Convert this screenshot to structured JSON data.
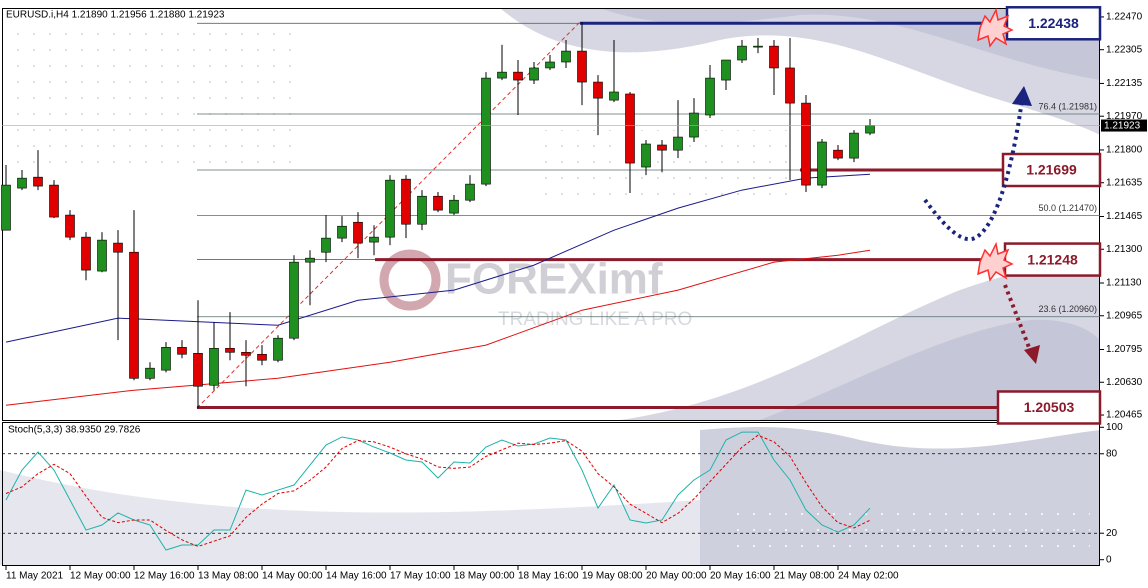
{
  "chart_data": [
    {
      "type": "candlestick",
      "title": "EURUSD.i,H4  1.21890 1.21956 1.21880 1.21923",
      "categories": [
        "11 May 2021",
        null,
        null,
        null,
        "12 May 00:00",
        null,
        null,
        null,
        "12 May 16:00",
        null,
        null,
        null,
        "13 May 08:00",
        null,
        null,
        null,
        "14 May 00:00",
        null,
        null,
        null,
        "14 May 16:00",
        null,
        null,
        null,
        "17 May 10:00",
        null,
        null,
        null,
        "18 May 00:00",
        null,
        null,
        null,
        "18 May 16:00",
        null,
        null,
        null,
        "19 May 08:00",
        null,
        null,
        null,
        "20 May 00:00",
        null,
        null,
        null,
        "20 May 16:00",
        null,
        null,
        null,
        "21 May 08:00",
        null,
        null,
        null,
        "24 May 02:00",
        null,
        null
      ],
      "open": [
        1.21396,
        1.21608,
        1.21663,
        1.21623,
        1.21472,
        1.21361,
        1.2119,
        1.21331,
        1.21285,
        1.2065,
        1.20691,
        1.20806,
        1.20776,
        1.20615,
        1.20801,
        1.20781,
        1.20771,
        1.20741,
        1.20852,
        1.21235,
        1.21285,
        1.21356,
        1.21436,
        1.21336,
        1.21361,
        1.21653,
        1.21426,
        1.21567,
        1.21482,
        1.21547,
        1.21628,
        1.22162,
        1.22192,
        1.22152,
        1.22213,
        1.22243,
        1.22298,
        1.22142,
        1.22051,
        1.22082,
        1.21714,
        1.21825,
        1.21799,
        1.21865,
        1.21976,
        1.22152,
        1.22253,
        1.22318,
        1.22323,
        1.22213,
        1.22036,
        1.21623,
        1.21799,
        1.21759,
        1.21885
      ],
      "high": [
        1.21724,
        1.21699,
        1.21799,
        1.21648,
        1.21497,
        1.21386,
        1.21386,
        1.21396,
        1.21497,
        1.20731,
        1.20832,
        1.20842,
        1.21043,
        1.20932,
        1.20983,
        1.20842,
        1.20817,
        1.20867,
        1.2127,
        1.21295,
        1.21472,
        1.21467,
        1.21487,
        1.21421,
        1.21673,
        1.21673,
        1.21598,
        1.21588,
        1.21573,
        1.21673,
        1.22192,
        1.22329,
        1.22253,
        1.22243,
        1.22278,
        1.22354,
        1.22444,
        1.22177,
        1.22354,
        1.22092,
        1.2185,
        1.2185,
        1.22051,
        1.22061,
        1.22228,
        1.22253,
        1.22354,
        1.22364,
        1.22354,
        1.22364,
        1.22077,
        1.21855,
        1.21825,
        1.219,
        1.21956
      ],
      "low": [
        1.21396,
        1.21598,
        1.21598,
        1.21457,
        1.21346,
        1.21144,
        1.21184,
        1.20842,
        1.2064,
        1.2064,
        1.2068,
        1.20751,
        1.20499,
        1.2059,
        1.20741,
        1.2061,
        1.20716,
        1.20731,
        1.20842,
        1.21018,
        1.21235,
        1.21336,
        1.21255,
        1.2127,
        1.21321,
        1.21356,
        1.21396,
        1.21487,
        1.21472,
        1.21537,
        1.21618,
        1.22152,
        1.21976,
        1.22132,
        1.22202,
        1.22213,
        1.22026,
        1.21875,
        1.22041,
        1.21583,
        1.21673,
        1.21688,
        1.21759,
        1.2184,
        1.21961,
        1.22102,
        1.22238,
        1.22288,
        1.22077,
        1.21648,
        1.21588,
        1.21608,
        1.21749,
        1.21739,
        1.21875
      ],
      "close": [
        1.21623,
        1.21658,
        1.21618,
        1.21462,
        1.21361,
        1.21195,
        1.21346,
        1.21285,
        1.2065,
        1.20701,
        1.20806,
        1.20771,
        1.2061,
        1.20801,
        1.20781,
        1.20766,
        1.20741,
        1.20852,
        1.21235,
        1.21255,
        1.21356,
        1.21416,
        1.21331,
        1.21361,
        1.21648,
        1.21426,
        1.21567,
        1.21497,
        1.21547,
        1.21628,
        1.22162,
        1.22192,
        1.22152,
        1.22213,
        1.22243,
        1.22298,
        1.22142,
        1.22061,
        1.22092,
        1.21734,
        1.2183,
        1.21799,
        1.21865,
        1.21986,
        1.22162,
        1.22253,
        1.22323,
        1.22323,
        1.22213,
        1.22036,
        1.21623,
        1.2184,
        1.21759,
        1.21885,
        1.21923
      ],
      "up_color": "#1f8f1f",
      "down_color": "#e00000",
      "ylim": [
        1.2044,
        1.22515
      ],
      "yticks": [
        {
          "value": 1.2247,
          "label": "1.22470"
        },
        {
          "value": 1.22305,
          "label": "1.22305"
        },
        {
          "value": 1.22135,
          "label": "1.22135"
        },
        {
          "value": 1.2197,
          "label": "1.21970"
        },
        {
          "value": 1.218,
          "label": "1.21800"
        },
        {
          "value": 1.21635,
          "label": "1.21635"
        },
        {
          "value": 1.21465,
          "label": "1.21465"
        },
        {
          "value": 1.213,
          "label": "1.21300"
        },
        {
          "value": 1.2113,
          "label": "1.21130"
        },
        {
          "value": 1.20965,
          "label": "1.20965"
        },
        {
          "value": 1.20795,
          "label": "1.20795"
        },
        {
          "value": 1.2063,
          "label": "1.20630"
        },
        {
          "value": 1.20465,
          "label": "1.20465"
        }
      ],
      "moving_averages": [
        {
          "color": "#1a1a8c",
          "x": [
            0,
            7,
            17,
            22,
            28,
            33,
            38,
            42,
            46,
            50,
            54
          ],
          "values": [
            1.20832,
            1.20953,
            1.20917,
            1.21043,
            1.21094,
            1.2122,
            1.21396,
            1.21507,
            1.21598,
            1.21658,
            1.21678
          ]
        },
        {
          "color": "#e01010",
          "x": [
            0,
            8,
            17,
            24,
            30,
            36,
            42,
            48,
            52,
            54
          ],
          "values": [
            1.20514,
            1.2059,
            1.2065,
            1.20731,
            1.20817,
            1.20993,
            1.21094,
            1.21235,
            1.2127,
            1.21295
          ]
        }
      ],
      "fib_levels": [
        {
          "value": 1.21981,
          "label": "76.4 (1.21981)"
        },
        {
          "value": 1.2147,
          "label": "50.0 (1.21470)"
        },
        {
          "value": 1.2096,
          "label": "23.6 (1.20960)"
        }
      ],
      "key_levels": [
        {
          "value": 1.22438,
          "color": "#1a237e"
        },
        {
          "value": 1.21699,
          "color": "#8b1a2b"
        },
        {
          "value": 1.21248,
          "color": "#8b1a2b"
        },
        {
          "value": 1.20503,
          "color": "#8b1a2b"
        }
      ],
      "last_price": 1.21923,
      "watermark": {
        "brand": "FOREXimf",
        "tagline": "TRADING LIKE A PRO"
      }
    },
    {
      "type": "line",
      "title": "Stoch(5,3,3) 38.9350 29.7826",
      "ylim": [
        -4,
        104
      ],
      "yticks": [
        0,
        20,
        80,
        100
      ],
      "levels": [
        20,
        80
      ],
      "series": [
        {
          "color": "#20b2aa",
          "style": "solid",
          "values": [
            45.1,
            67.7,
            81.3,
            67.7,
            45.1,
            22.4,
            26.2,
            35.3,
            30.0,
            26.2,
            7.3,
            11.1,
            11.1,
            22.4,
            22.4,
            52.6,
            48.9,
            52.6,
            56.4,
            71.5,
            86.6,
            92.7,
            90.4,
            85.1,
            80.6,
            75.3,
            73.8,
            61.7,
            73.8,
            73.0,
            85.1,
            90.4,
            85.9,
            87.4,
            91.9,
            90.4,
            67.7,
            39.0,
            56.4,
            30.0,
            27.7,
            30.0,
            48.9,
            60.2,
            67.7,
            90.4,
            96.4,
            96.4,
            75.3,
            60.2,
            37.5,
            26.2,
            20.9,
            26.2,
            38.935
          ]
        },
        {
          "color": "#e00000",
          "style": "dashed",
          "values": [
            50,
            55,
            65,
            72,
            65,
            48,
            32,
            28,
            30,
            30,
            22,
            15,
            10,
            14,
            18,
            32,
            42,
            50,
            52,
            60,
            70,
            84,
            90,
            89,
            85,
            80,
            76,
            70,
            69,
            70,
            78,
            83,
            88,
            87,
            88,
            90,
            82,
            65,
            55,
            42,
            35,
            28,
            35,
            46,
            59,
            72,
            85,
            94,
            89,
            78,
            58,
            40,
            28,
            24,
            29.7826
          ]
        }
      ]
    }
  ]
}
